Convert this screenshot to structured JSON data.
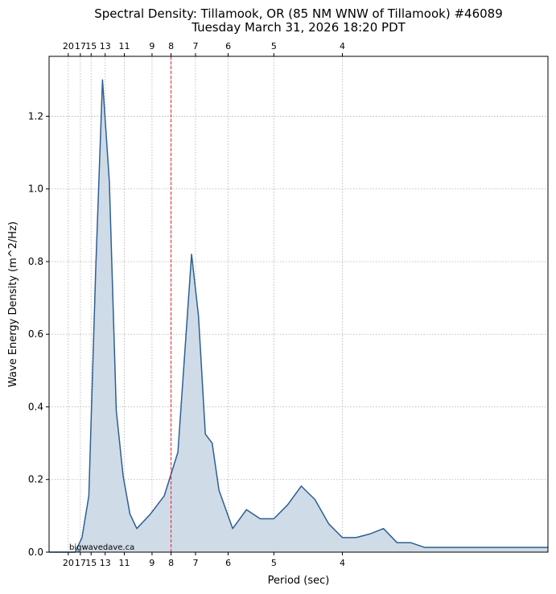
{
  "chart_data": {
    "type": "area",
    "title": "Spectral Density: Tillamook, OR (85 NM WNW of Tillamook) #46089",
    "subtitle": "Tuesday March 31, 2026 18:20 PDT",
    "xlabel": "Period (sec)",
    "ylabel": "Wave Energy Density (m^2/Hz)",
    "xaxis_scale": "frequency (1/period)",
    "xlim_frequency": [
      0.036,
      0.4
    ],
    "ylim": [
      0,
      1.365
    ],
    "yticks": [
      0.0,
      0.2,
      0.4,
      0.6,
      0.8,
      1.0,
      1.2
    ],
    "ytick_labels": [
      "0.0",
      "0.2",
      "0.4",
      "0.6",
      "0.8",
      "1.0",
      "1.2"
    ],
    "period_ticks": [
      20,
      17,
      15,
      13,
      11,
      9,
      8,
      7,
      6,
      5,
      4
    ],
    "period_tick_labels": [
      "20",
      "17",
      "15",
      "13",
      "11",
      "9",
      "8",
      "7",
      "6",
      "5",
      "4"
    ],
    "grid": true,
    "reference_line_period": 8,
    "reference_line_color": "#e8202a",
    "line_color": "#2c5f94",
    "fill_color": "#cfdbe7",
    "watermark": "bigwavedave.ca",
    "series": [
      {
        "frequency": [
          0.036,
          0.045,
          0.055,
          0.06,
          0.065,
          0.07,
          0.075,
          0.08,
          0.085,
          0.09,
          0.095,
          0.1,
          0.11,
          0.12,
          0.13,
          0.14,
          0.145,
          0.15,
          0.155,
          0.16,
          0.17,
          0.18,
          0.19,
          0.2,
          0.21,
          0.22,
          0.23,
          0.24,
          0.25,
          0.26,
          0.27,
          0.28,
          0.29,
          0.3,
          0.31,
          0.32,
          0.33,
          0.35,
          0.36,
          0.37,
          0.38,
          0.39,
          0.4
        ],
        "values": [
          0.0,
          0.0,
          0.0,
          0.04,
          0.155,
          0.775,
          1.3,
          1.02,
          0.39,
          0.21,
          0.105,
          0.065,
          0.105,
          0.155,
          0.275,
          0.82,
          0.65,
          0.325,
          0.3,
          0.17,
          0.065,
          0.117,
          0.092,
          0.092,
          0.13,
          0.182,
          0.145,
          0.078,
          0.04,
          0.04,
          0.05,
          0.065,
          0.026,
          0.026,
          0.013,
          0.013,
          0.013,
          0.013,
          0.013,
          0.013,
          0.013,
          0.013,
          0.013
        ]
      }
    ]
  }
}
